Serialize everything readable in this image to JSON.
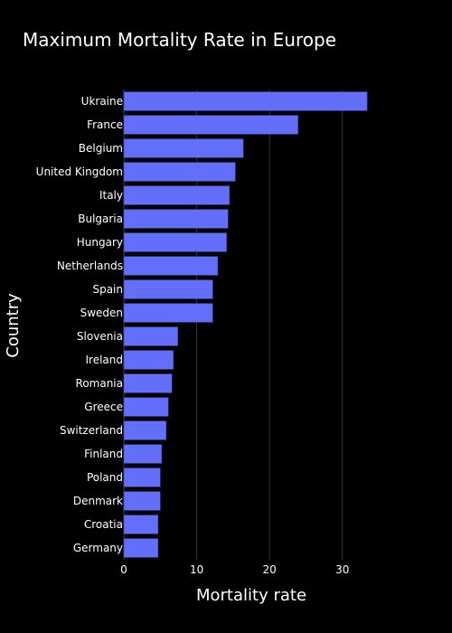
{
  "chart_data": {
    "type": "bar",
    "orientation": "horizontal",
    "title": "Maximum Mortality Rate in Europe",
    "xlabel": "Mortality rate",
    "ylabel": "Country",
    "categories": [
      "Ukraine",
      "France",
      "Belgium",
      "United Kingdom",
      "Italy",
      "Bulgaria",
      "Hungary",
      "Netherlands",
      "Spain",
      "Sweden",
      "Slovenia",
      "Ireland",
      "Romania",
      "Greece",
      "Switzerland",
      "Finland",
      "Poland",
      "Denmark",
      "Croatia",
      "Germany"
    ],
    "values": [
      33.4,
      23.9,
      16.4,
      15.3,
      14.5,
      14.3,
      14.1,
      12.9,
      12.2,
      12.2,
      7.4,
      6.8,
      6.6,
      6.1,
      5.8,
      5.2,
      5.0,
      5.0,
      4.7,
      4.7
    ],
    "xlim": [
      0,
      34.5
    ],
    "xticks": [
      0,
      10,
      20,
      30
    ],
    "grid": true,
    "bar_color": "#636efa",
    "background_color": "#000000"
  }
}
